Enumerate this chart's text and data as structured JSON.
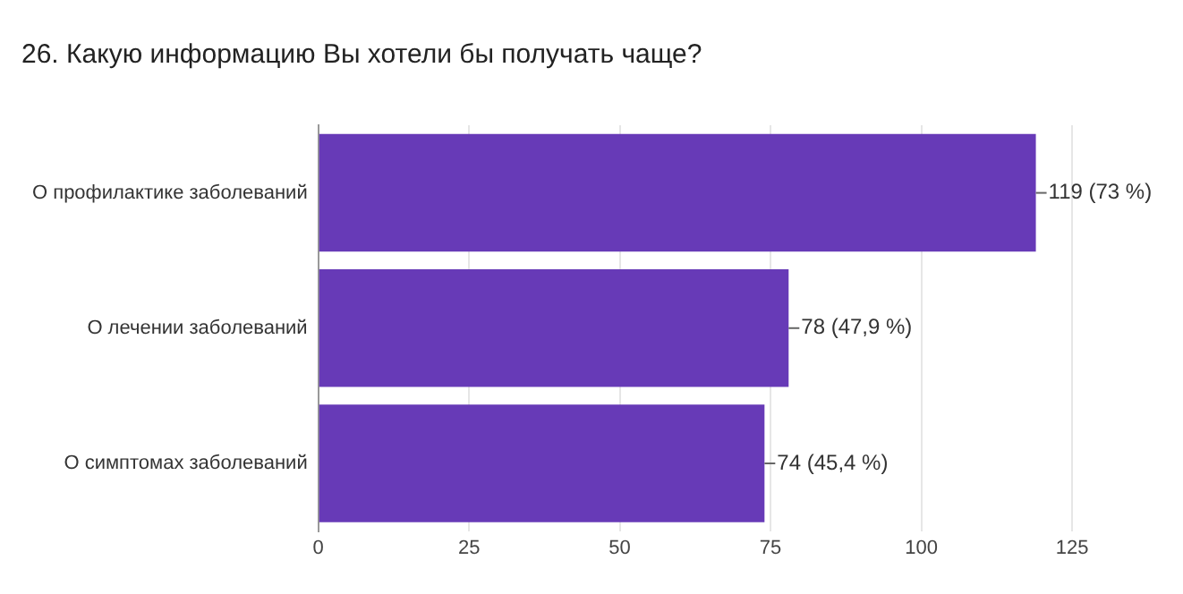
{
  "chart_data": {
    "type": "bar",
    "orientation": "horizontal",
    "title": "26. Какую информацию Вы хотели бы получать чаще?",
    "categories": [
      "О профилактике заболеваний",
      "О лечении заболеваний",
      "О симптомах заболеваний"
    ],
    "values": [
      119,
      78,
      74
    ],
    "value_labels": [
      "119 (73 %)",
      "78 (47,9 %)",
      "74 (45,4 %)"
    ],
    "color": "#673ab7",
    "xlim": [
      0,
      125
    ],
    "xticks": [
      0,
      25,
      50,
      75,
      100,
      125
    ],
    "grid": "x",
    "legend": false
  }
}
